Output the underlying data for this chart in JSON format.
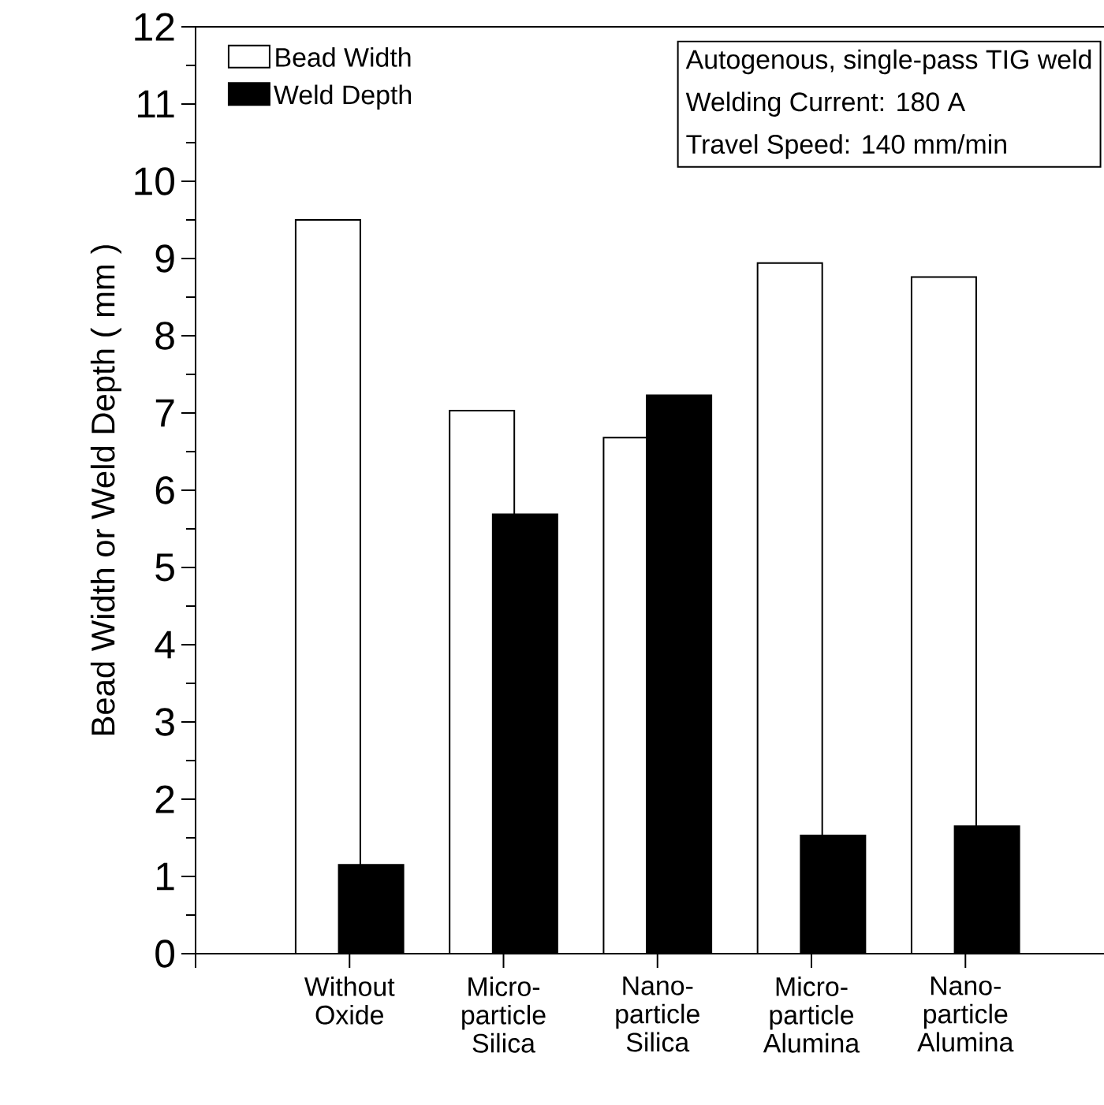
{
  "chart_data": {
    "type": "bar",
    "ylabel": "Bead Width or Weld Depth ( mm )",
    "categories": [
      "Without Oxide",
      "Micro-particle Silica",
      "Nano-particle Silica",
      "Micro-particle Alumina",
      "Nano-particle Alumina"
    ],
    "series": [
      {
        "name": "Bead Width",
        "color": "#ffffff",
        "values": [
          9.5,
          7.03,
          6.68,
          8.94,
          8.76
        ]
      },
      {
        "name": "Weld Depth",
        "color": "#000000",
        "values": [
          1.15,
          5.69,
          7.23,
          1.53,
          1.65
        ]
      }
    ],
    "ylim": [
      0,
      12
    ],
    "yticks": [
      0,
      1,
      2,
      3,
      4,
      5,
      6,
      7,
      8,
      9,
      10,
      11,
      12
    ],
    "legend": "top left",
    "annotations": [
      "Autogenous, single-pass TIG weld",
      "Welding Current: 180 A",
      "Travel Speed: 140 mm/min"
    ]
  }
}
